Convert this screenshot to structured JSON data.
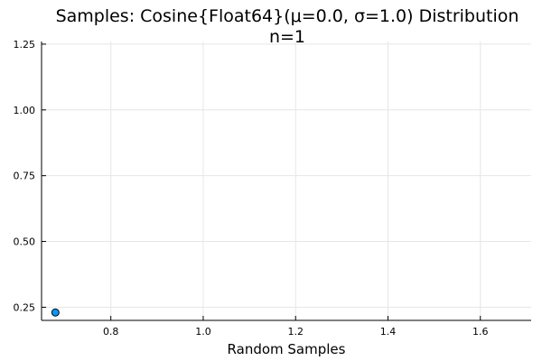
{
  "chart_data": {
    "type": "scatter",
    "title": "Samples: Cosine{Float64}(μ=0.0, σ=1.0) Distribution",
    "subtitle": "n=1",
    "xlabel": "Random Samples",
    "ylabel": "",
    "xlim": [
      0.65,
      1.71
    ],
    "ylim": [
      0.2,
      1.26
    ],
    "xticks": [
      0.8,
      1.0,
      1.2,
      1.4,
      1.6
    ],
    "xtick_labels": [
      "0.8",
      "1.0",
      "1.2",
      "1.4",
      "1.6"
    ],
    "yticks": [
      0.25,
      0.5,
      0.75,
      1.0,
      1.25
    ],
    "ytick_labels": [
      "0.25",
      "0.50",
      "0.75",
      "1.00",
      "1.25"
    ],
    "grid": true,
    "legend": "none",
    "marker_color": "#009AFA",
    "marker_edge_color": "#000000",
    "series": [
      {
        "x": [
          0.68
        ],
        "y": [
          0.23
        ]
      }
    ]
  }
}
